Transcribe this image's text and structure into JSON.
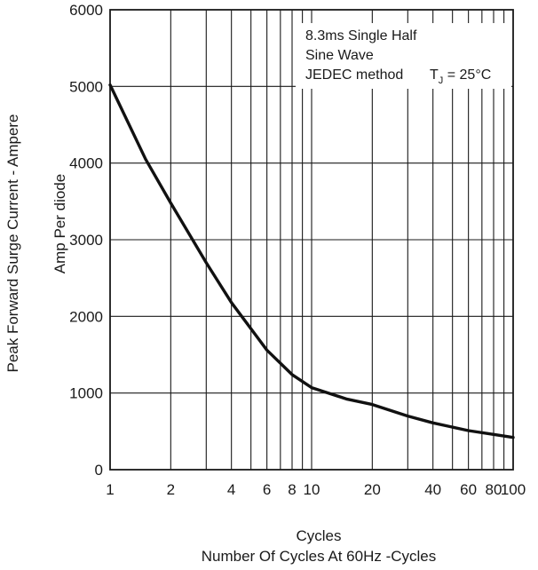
{
  "chart_data": {
    "type": "line",
    "xscale": "log",
    "xlim": [
      1,
      100
    ],
    "ylim": [
      0,
      6000
    ],
    "x_ticks": [
      1,
      2,
      4,
      6,
      8,
      10,
      20,
      40,
      60,
      80,
      100
    ],
    "x_tick_labels": [
      "1",
      "2",
      "4",
      "6",
      "8",
      "10",
      "20",
      "40",
      "60",
      "80",
      "100"
    ],
    "x_grid": [
      1,
      2,
      3,
      4,
      5,
      6,
      7,
      8,
      9,
      10,
      20,
      30,
      40,
      50,
      60,
      70,
      80,
      90,
      100
    ],
    "y_ticks": [
      0,
      1000,
      2000,
      3000,
      4000,
      5000,
      6000
    ],
    "y_tick_labels": [
      "0",
      "1000",
      "2000",
      "3000",
      "4000",
      "5000",
      "6000"
    ],
    "grid": true,
    "xlabel_line1": "Cycles",
    "xlabel_line2": "Number Of Cycles  At 60Hz -Cycles",
    "ylabel_line1": "Peak Forward Surge Current - Ampere",
    "ylabel_line2": "Amp   Per diode",
    "annotation": {
      "lines": [
        "8.3ms Single Half",
        "Sine Wave",
        "JEDEC method"
      ],
      "temp_prefix": "T",
      "temp_subscript": "J",
      "temp_suffix": " = 25°C",
      "placement": "top-right"
    },
    "series": [
      {
        "x": [
          1,
          1.5,
          2,
          3,
          4,
          6,
          8,
          10,
          15,
          20,
          30,
          40,
          60,
          80,
          100
        ],
        "y": [
          5020,
          4050,
          3480,
          2700,
          2180,
          1560,
          1240,
          1070,
          920,
          850,
          700,
          610,
          510,
          460,
          420
        ]
      }
    ]
  }
}
